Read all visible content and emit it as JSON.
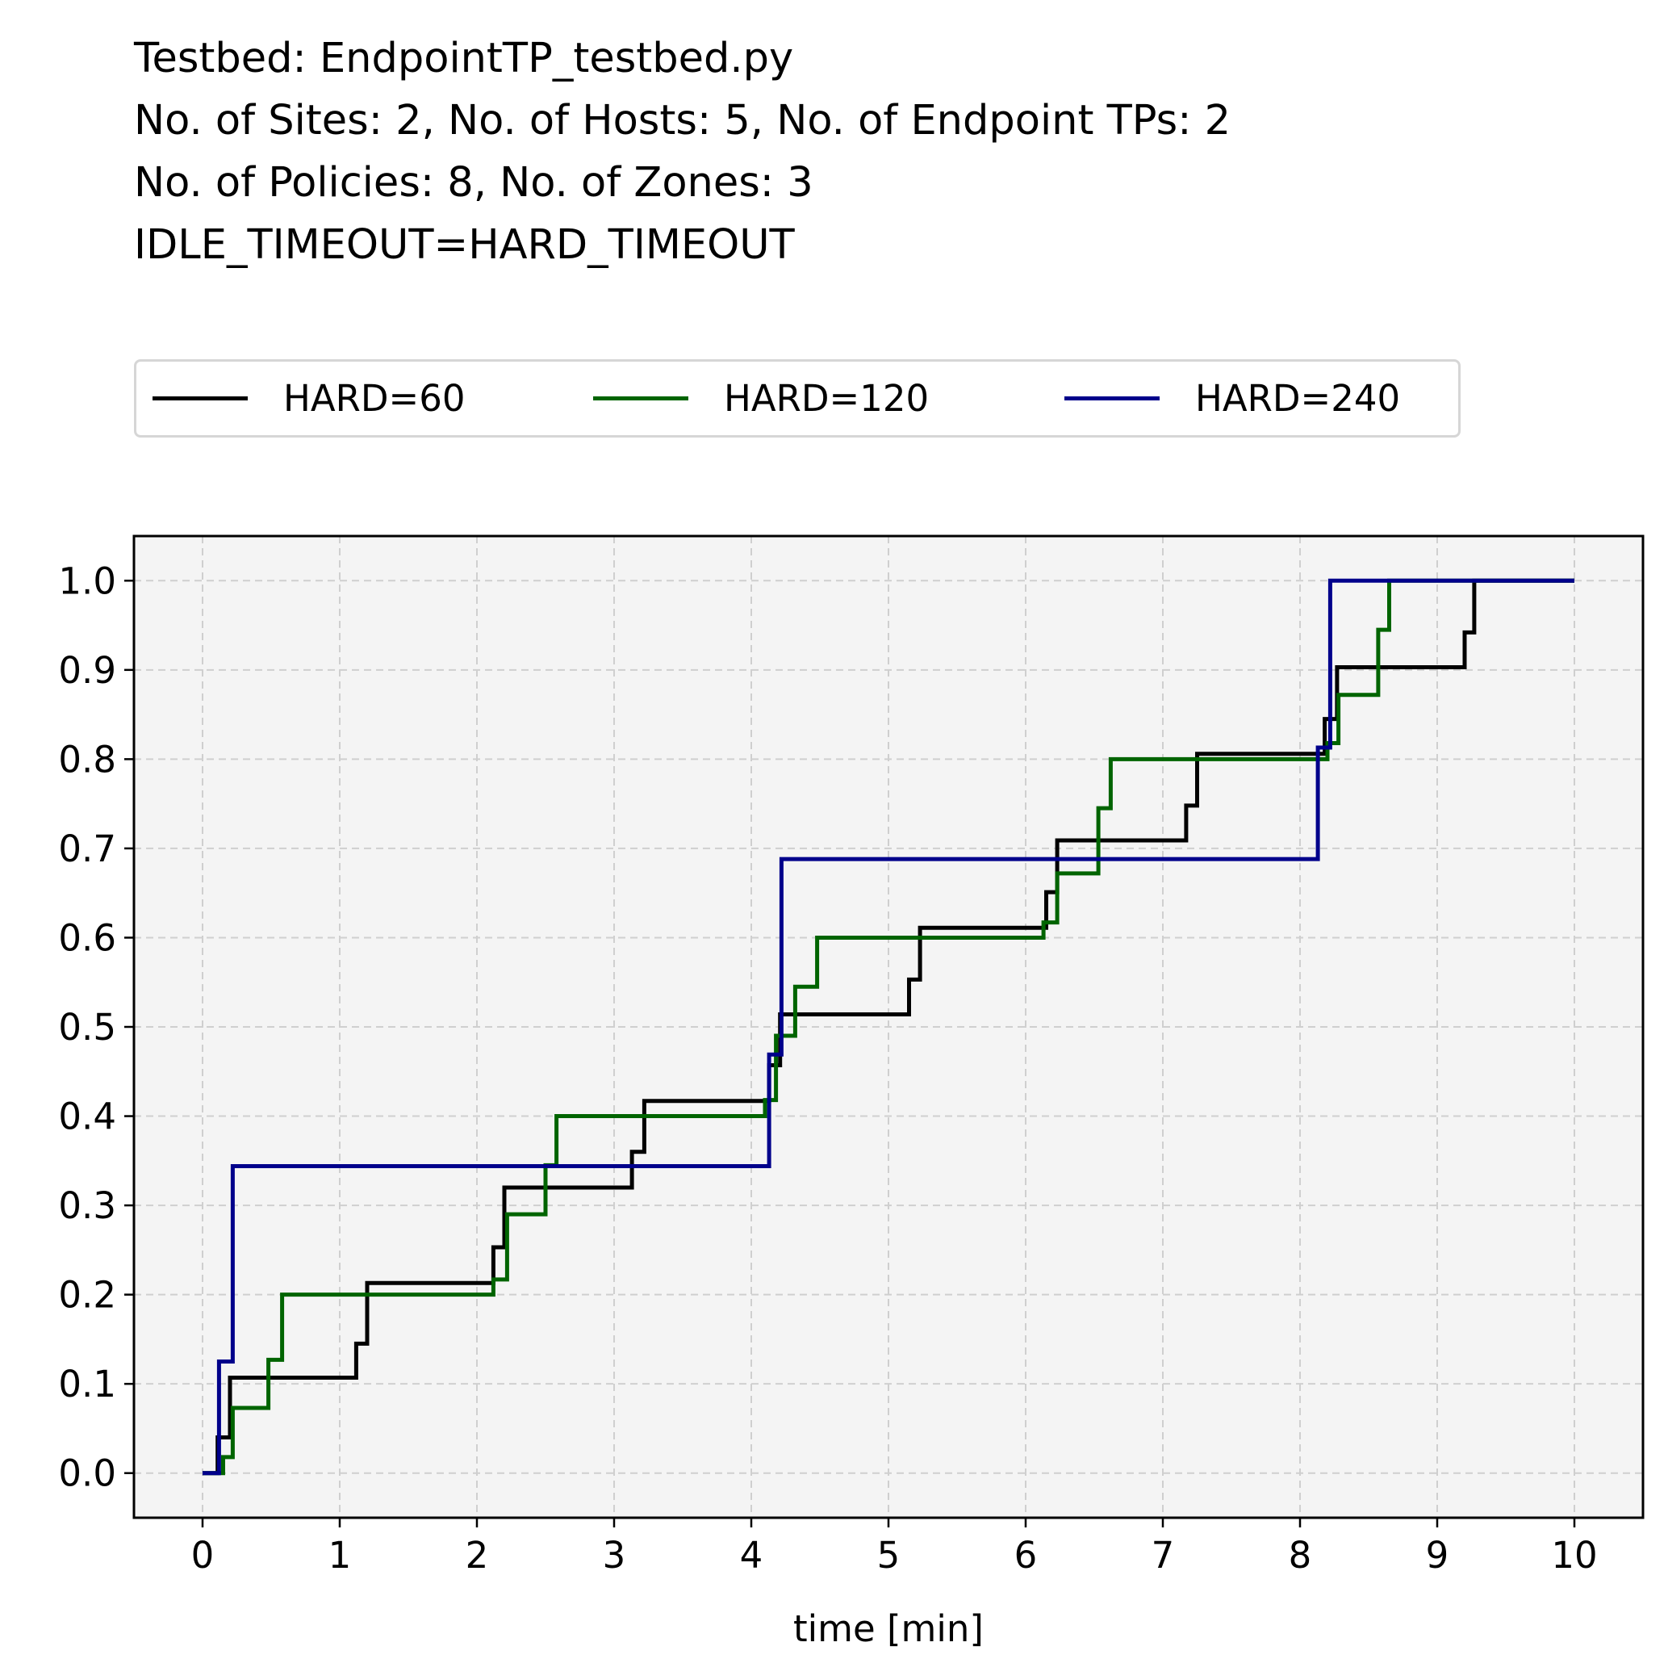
{
  "title_lines": [
    "Testbed: EndpointTP_testbed.py",
    "No. of Sites: 2, No. of Hosts: 5, No. of Endpoint TPs: 2",
    "No. of Policies: 8, No. of Zones: 3",
    "IDLE_TIMEOUT=HARD_TIMEOUT"
  ],
  "chart_data": {
    "type": "line",
    "step": "post",
    "xlabel": "time [min]",
    "ylabel": "",
    "xlim": [
      -0.5,
      10.5
    ],
    "ylim": [
      -0.05,
      1.05
    ],
    "xticks": [
      0,
      1,
      2,
      3,
      4,
      5,
      6,
      7,
      8,
      9,
      10
    ],
    "yticks": [
      0.0,
      0.1,
      0.2,
      0.3,
      0.4,
      0.5,
      0.6,
      0.7,
      0.8,
      0.9,
      1.0
    ],
    "xtick_labels": [
      "0",
      "1",
      "2",
      "3",
      "4",
      "5",
      "6",
      "7",
      "8",
      "9",
      "10"
    ],
    "ytick_labels": [
      "0.0",
      "0.1",
      "0.2",
      "0.3",
      "0.4",
      "0.5",
      "0.6",
      "0.7",
      "0.8",
      "0.9",
      "1.0"
    ],
    "grid": true,
    "legend_position": "top, above plot, 3 columns",
    "plot_background": "#f4f4f4",
    "series": [
      {
        "name": "HARD=60",
        "color": "#000000",
        "x": [
          0,
          0.11,
          0.2,
          1.12,
          1.2,
          2.12,
          2.2,
          3.13,
          3.22,
          4.13,
          4.21,
          5.15,
          5.23,
          6.15,
          6.23,
          7.17,
          7.25,
          8.18,
          8.27,
          9.2,
          9.27,
          10.0
        ],
        "y": [
          0,
          0.04,
          0.107,
          0.145,
          0.213,
          0.253,
          0.32,
          0.36,
          0.417,
          0.457,
          0.514,
          0.553,
          0.611,
          0.651,
          0.709,
          0.748,
          0.806,
          0.845,
          0.903,
          0.942,
          1.0,
          1.0
        ]
      },
      {
        "name": "HARD=120",
        "color": "#006400",
        "x": [
          0,
          0.15,
          0.22,
          0.48,
          0.58,
          2.12,
          2.22,
          2.5,
          2.58,
          4.1,
          4.18,
          4.32,
          4.48,
          4.6,
          6.13,
          6.23,
          6.53,
          6.62,
          8.2,
          8.28,
          8.57,
          8.65,
          10.0
        ],
        "y": [
          0,
          0.018,
          0.073,
          0.127,
          0.2,
          0.217,
          0.29,
          0.345,
          0.4,
          0.418,
          0.49,
          0.545,
          0.6,
          0.6,
          0.617,
          0.672,
          0.745,
          0.8,
          0.818,
          0.872,
          0.945,
          1.0,
          1.0
        ]
      },
      {
        "name": "HARD=240",
        "color": "#00008b",
        "x": [
          0,
          0.12,
          0.22,
          4.13,
          4.22,
          8.13,
          8.22,
          10.0
        ],
        "y": [
          0,
          0.125,
          0.344,
          0.469,
          0.688,
          0.813,
          1.0,
          1.0
        ]
      }
    ]
  }
}
